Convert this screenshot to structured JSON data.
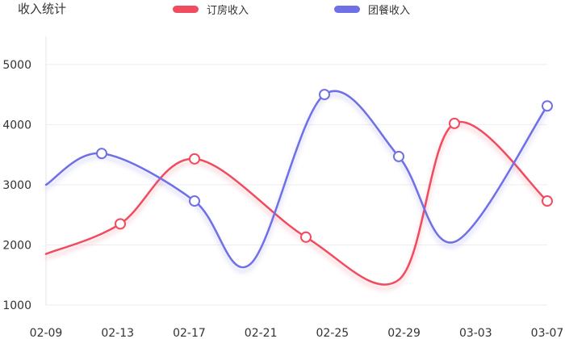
{
  "chart_data": {
    "type": "line",
    "title": "收入统计",
    "x_ticks": [
      "02-09",
      "02-13",
      "02-17",
      "02-21",
      "02-25",
      "02-29",
      "03-03",
      "03-07"
    ],
    "x_range": [
      "2024-02-09",
      "2024-03-07"
    ],
    "ylim": [
      1000,
      5400
    ],
    "y_ticks": [
      1000,
      2000,
      3000,
      4000,
      5000
    ],
    "grid": true,
    "legend_position": "top",
    "series": [
      {
        "name": "订房收入",
        "color": "#f04b5e",
        "points": [
          {
            "x": "2024-02-09",
            "y": 1850
          },
          {
            "x": "2024-02-13",
            "y": 2350,
            "marker": true
          },
          {
            "x": "2024-02-17",
            "y": 3430,
            "marker": true
          },
          {
            "x": "2024-02-23",
            "y": 2130,
            "marker": true
          },
          {
            "x": "2024-02-28",
            "y": 1420
          },
          {
            "x": "2024-03-02",
            "y": 4020,
            "marker": true
          },
          {
            "x": "2024-03-07",
            "y": 2730,
            "marker": true
          }
        ]
      },
      {
        "name": "团餐收入",
        "color": "#6f6fe6",
        "points": [
          {
            "x": "2024-02-09",
            "y": 3000
          },
          {
            "x": "2024-02-12",
            "y": 3520,
            "marker": true
          },
          {
            "x": "2024-02-17",
            "y": 2730,
            "marker": true
          },
          {
            "x": "2024-02-20",
            "y": 1680
          },
          {
            "x": "2024-02-24",
            "y": 4500,
            "marker": true
          },
          {
            "x": "2024-02-28",
            "y": 3470,
            "marker": true
          },
          {
            "x": "2024-03-02",
            "y": 2050
          },
          {
            "x": "2024-03-07",
            "y": 4310,
            "marker": true
          }
        ]
      }
    ]
  }
}
